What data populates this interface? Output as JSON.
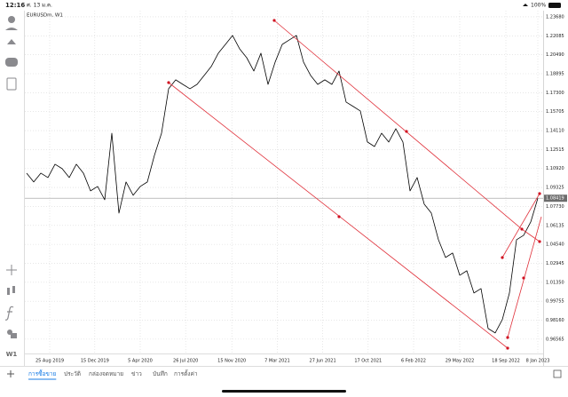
{
  "status_bar": {
    "time": "12:16",
    "date": "ศ. 13 ม.ค.",
    "battery": "100%"
  },
  "chart_data": {
    "type": "line",
    "title": "EURUSDm, W1",
    "series": [
      {
        "color": "#000000",
        "values": [
          1.1053,
          1.0979,
          1.1053,
          1.1016,
          1.1128,
          1.1091,
          1.1016,
          1.1128,
          1.1053,
          1.0904,
          1.0941,
          1.0829,
          1.1389,
          1.0717,
          1.0979,
          1.0867,
          1.0941,
          1.0979,
          1.1203,
          1.1389,
          1.1763,
          1.1838,
          1.18,
          1.1763,
          1.18,
          1.1875,
          1.195,
          1.2062,
          1.2136,
          1.2211,
          1.2099,
          1.2024,
          1.1912,
          1.2062,
          1.18,
          1.1987,
          1.2136,
          1.2174,
          1.2211,
          1.1987,
          1.1875,
          1.18,
          1.1838,
          1.18,
          1.1912,
          1.1651,
          1.1614,
          1.1576,
          1.1315,
          1.1277,
          1.1389,
          1.1315,
          1.1427,
          1.1315,
          1.0904,
          1.1016,
          1.0792,
          1.0717,
          1.0493,
          1.0344,
          1.0381,
          1.0194,
          1.0232,
          1.0045,
          1.0082,
          0.9746,
          0.9709,
          0.9821,
          1.0045,
          1.0493,
          1.053,
          1.0642,
          1.0842
        ]
      }
    ],
    "xlim": [
      0,
      72
    ],
    "xticks": [
      {
        "value": 3.25,
        "label": "25 Aug 2019"
      },
      {
        "value": 9.6,
        "label": "15 Dec 2019"
      },
      {
        "value": 16,
        "label": "5 Apr 2020"
      },
      {
        "value": 22.4,
        "label": "26 Jul 2020"
      },
      {
        "value": 28.9,
        "label": "15 Nov 2020"
      },
      {
        "value": 35.3,
        "label": "7 Mar 2021"
      },
      {
        "value": 41.7,
        "label": "27 Jun 2021"
      },
      {
        "value": 48.1,
        "label": "17 Oct 2021"
      },
      {
        "value": 54.5,
        "label": "6 Feb 2022"
      },
      {
        "value": 61,
        "label": "29 May 2022"
      },
      {
        "value": 67.5,
        "label": "18 Sep 2022"
      },
      {
        "value": 72,
        "label": "8 Jan 2023"
      }
    ],
    "ylim": [
      0.9536,
      1.242
    ],
    "yticks": [
      {
        "value": 1.2368,
        "label": "1.23680"
      },
      1.22085,
      {
        "value": 1.2049,
        "label": "1.20490"
      },
      1.18895,
      {
        "value": 1.173,
        "label": "1.17300"
      },
      1.15705,
      {
        "value": 1.1411,
        "label": "1.14110"
      },
      1.12515,
      {
        "value": 1.1092,
        "label": "1.10920"
      },
      1.09325,
      {
        "value": 1.0773,
        "label": "1.07730"
      },
      1.06135,
      {
        "value": 1.0454,
        "label": "1.04540"
      },
      1.02945,
      {
        "value": 1.0135,
        "label": "1.01350"
      },
      0.99755,
      {
        "value": 0.9816,
        "label": "0.98160"
      },
      0.96565
    ],
    "current_price": 1.08419,
    "grid": true
  },
  "toolbar": {
    "timeframe": "W1"
  },
  "tabs": [
    "การซื้อขาย",
    "ประวัติ",
    "กล่องจดหมาย",
    "ข่าว",
    "บันทึก",
    "การตั้งค่า"
  ]
}
